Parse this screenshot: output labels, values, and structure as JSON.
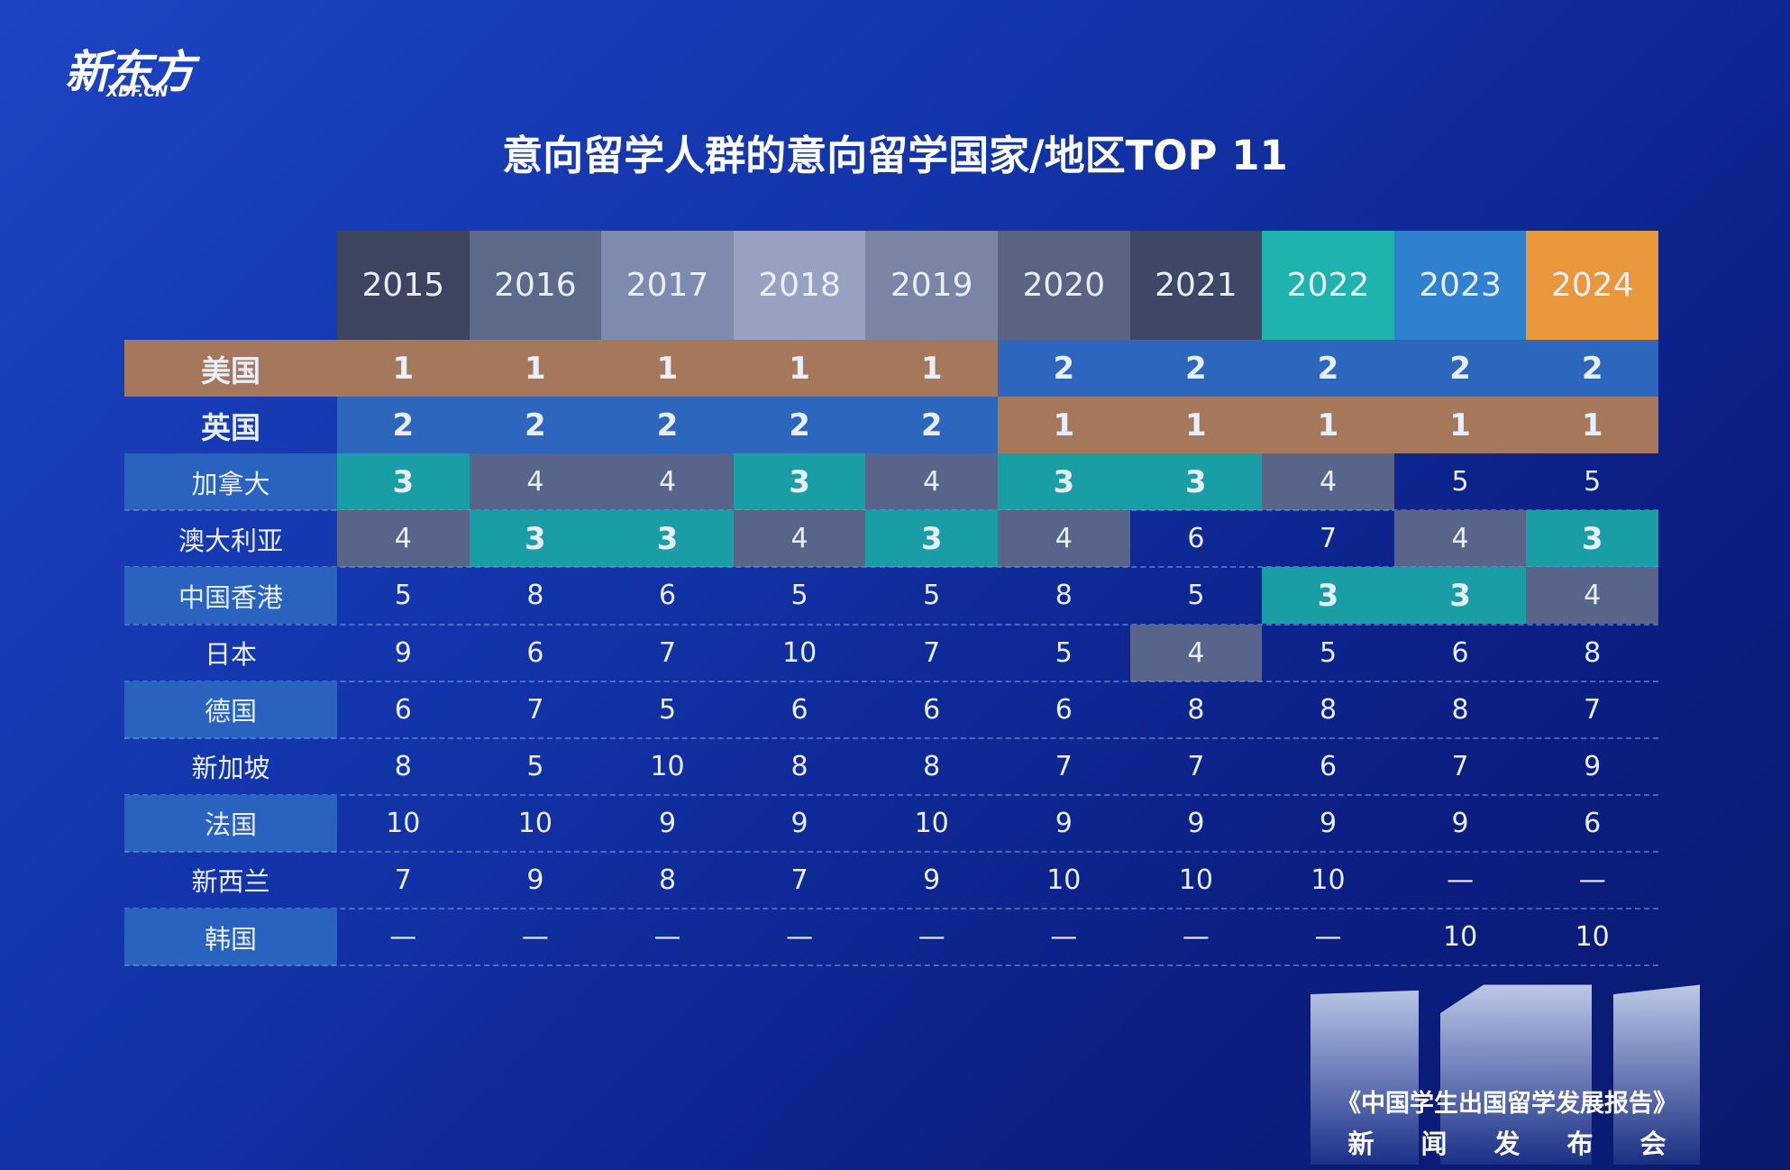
{
  "header": {
    "logo": "新东方",
    "logo_sub": "XDF.CN",
    "title": "意向留学人群的意向留学国家/地区TOP 11"
  },
  "table": {
    "columns": [
      "2015",
      "2016",
      "2017",
      "2018",
      "2019",
      "2020",
      "2021",
      "2022",
      "2023",
      "2024"
    ],
    "column_colors": [
      "#3c445f",
      "#5c6989",
      "#7e8bae",
      "#98a1c0",
      "#7a84a5",
      "#5b6383",
      "#3f4767",
      "#1fb3ae",
      "#2f80cf",
      "#e8983a"
    ],
    "rank_colors": {
      "1": "#a5785c",
      "2": "#2c66bd",
      "3": "#1a9ea6",
      "4": "#59648a"
    },
    "label_fill": "#2a62c0",
    "rows": [
      {
        "label": "美国",
        "values": [
          1,
          1,
          1,
          1,
          1,
          2,
          2,
          2,
          2,
          2
        ]
      },
      {
        "label": "英国",
        "values": [
          2,
          2,
          2,
          2,
          2,
          1,
          1,
          1,
          1,
          1
        ]
      },
      {
        "label": "加拿大",
        "values": [
          3,
          4,
          4,
          3,
          4,
          3,
          3,
          4,
          5,
          5
        ]
      },
      {
        "label": "澳大利亚",
        "values": [
          4,
          3,
          3,
          4,
          3,
          4,
          6,
          7,
          4,
          3
        ]
      },
      {
        "label": "中国香港",
        "values": [
          5,
          8,
          6,
          5,
          5,
          8,
          5,
          3,
          3,
          4
        ]
      },
      {
        "label": "日本",
        "values": [
          9,
          6,
          7,
          10,
          7,
          5,
          4,
          5,
          6,
          8
        ]
      },
      {
        "label": "德国",
        "values": [
          6,
          7,
          5,
          6,
          6,
          6,
          8,
          8,
          8,
          7
        ]
      },
      {
        "label": "新加坡",
        "values": [
          8,
          5,
          10,
          8,
          8,
          7,
          7,
          6,
          7,
          9
        ]
      },
      {
        "label": "法国",
        "values": [
          10,
          10,
          9,
          9,
          10,
          9,
          9,
          9,
          9,
          6
        ]
      },
      {
        "label": "新西兰",
        "values": [
          7,
          9,
          8,
          7,
          9,
          10,
          10,
          10,
          "—",
          "—"
        ]
      },
      {
        "label": "韩国",
        "values": [
          "—",
          "—",
          "—",
          "—",
          "—",
          "—",
          "—",
          "—",
          10,
          10
        ]
      }
    ]
  },
  "footer": {
    "report": "《中国学生出国留学发展报告》",
    "event": "新闻发布会"
  }
}
